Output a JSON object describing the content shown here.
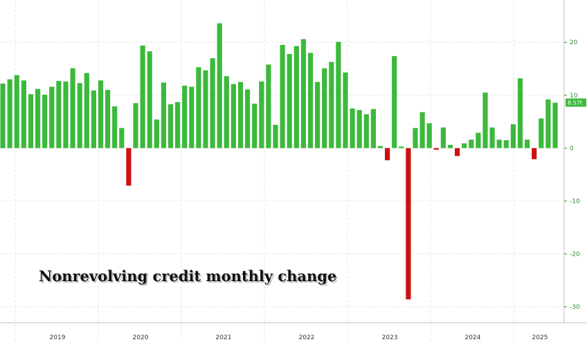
{
  "chart_data": {
    "type": "bar",
    "title": "Nonrevolving credit monthly change",
    "xlabel": "",
    "ylabel": "",
    "ylim": [
      -33,
      28
    ],
    "yticks": [
      -30,
      -20,
      -10,
      0,
      10,
      20
    ],
    "ytick_labels": [
      "-30",
      "-20",
      "-10",
      "0",
      "10",
      "20"
    ],
    "year_labels": [
      "2019",
      "2020",
      "2021",
      "2022",
      "2023",
      "2024",
      "2025"
    ],
    "last_value_label": "8.57t",
    "colors": {
      "positive": "#3cb93c",
      "negative": "#cc1111",
      "axis_label": "#2e8b2e",
      "last_badge": "#3cb93c"
    },
    "grid": true,
    "series": [
      {
        "values": [
          12.2,
          13.0,
          13.8,
          12.8,
          10.2,
          11.2,
          10.1,
          11.6,
          12.7,
          12.6,
          15.1,
          12.3,
          14.2,
          10.9,
          12.8,
          11.0,
          7.9,
          3.8,
          -7.1,
          8.5,
          19.4,
          18.3,
          5.4,
          12.4,
          8.3,
          8.7,
          11.8,
          11.6,
          15.3,
          14.7,
          17.0,
          23.6,
          13.6,
          12.1,
          12.5,
          11.1,
          8.4,
          12.6,
          15.8,
          4.4,
          19.5,
          17.8,
          19.3,
          20.6,
          18.0,
          12.5,
          15.1,
          16.3,
          20.1,
          14.3,
          7.5,
          7.2,
          6.4,
          7.4,
          0.4,
          -2.3,
          17.4,
          0.3,
          -28.6,
          3.8,
          6.8,
          4.7,
          -0.3,
          3.9,
          0.6,
          -1.5,
          0.9,
          1.6,
          2.9,
          10.5,
          3.9,
          1.6,
          1.5,
          4.5,
          13.2,
          1.6,
          -2.1,
          5.6,
          9.2,
          8.6
        ]
      }
    ]
  }
}
